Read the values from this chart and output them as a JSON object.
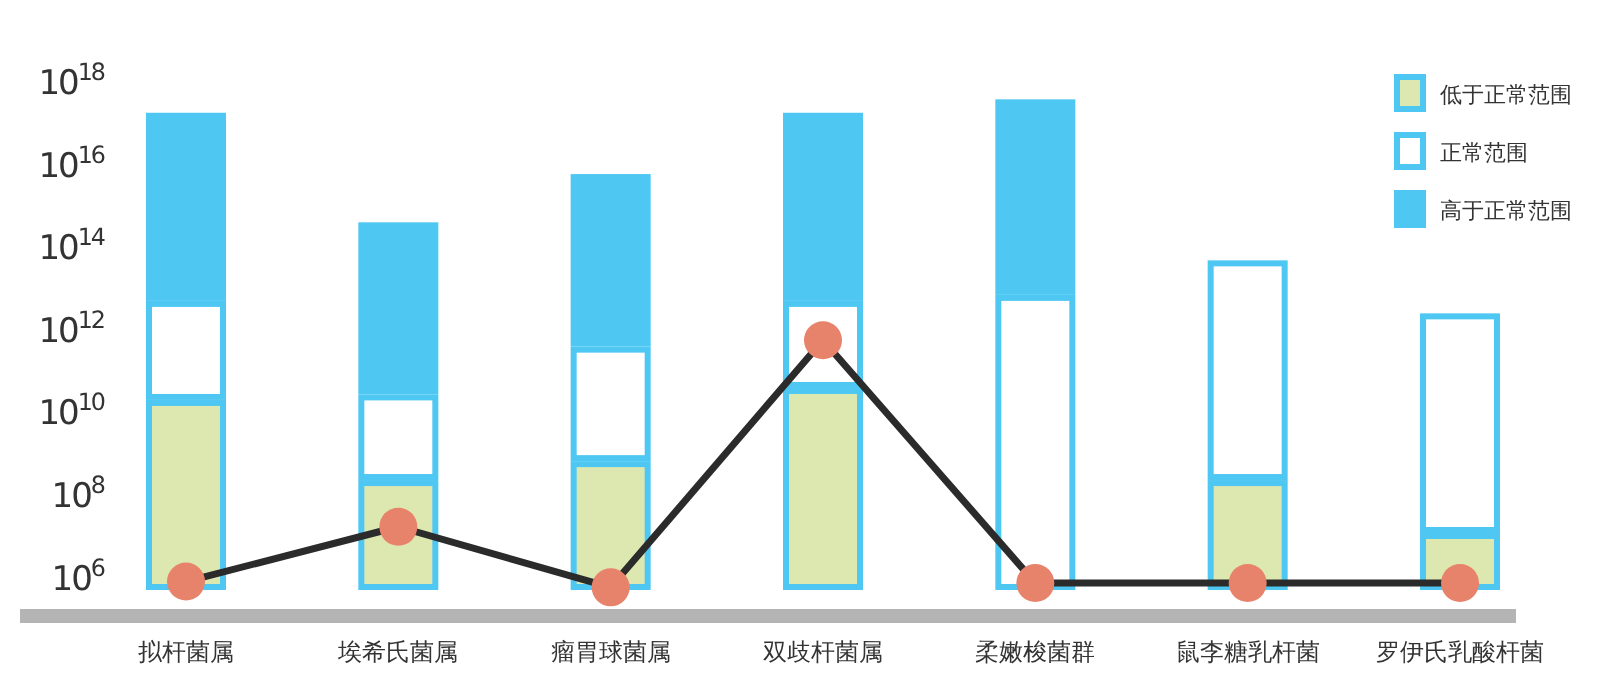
{
  "chart_data": {
    "type": "bar",
    "stacked": true,
    "log": "y",
    "legend": "top right",
    "categories": [
      "拟杆菌属",
      "埃希氏菌属",
      "瘤胃球菌属",
      "双歧杆菌属",
      "柔嫩梭菌群",
      "鼠李糖乳杆菌",
      "罗伊氏乳酸杆菌"
    ],
    "ylim": [
      500000,
      1e+18
    ],
    "yticks": [
      {
        "value": 1000000.0,
        "label": "10$^{6}$"
      },
      {
        "value": 100000000.0,
        "label": "10$^{8}$"
      },
      {
        "value": 10000000000.0,
        "label": "10$^{10}$"
      },
      {
        "value": 1000000000000.0,
        "label": "10$^{12}$"
      },
      {
        "value": 100000000000000.0,
        "label": "10$^{14}$"
      },
      {
        "value": 1e+16,
        "label": "10$^{16}$"
      },
      {
        "value": 1e+18,
        "label": "10$^{18}$"
      }
    ],
    "series": [
      {
        "name": "低于正常范围",
        "color": "#dde8b0",
        "values": [
          20000000000.0,
          230000000.0,
          660000000.0,
          39000000000.0,
          null,
          230000000.0,
          12000000.0
        ]
      },
      {
        "name": "正常范围",
        "color": "#ffffff",
        "values": [
          4980000000000.0,
          27000000000.0,
          390000000000.0,
          4960000000000.0,
          7000000000000.0,
          48000000000000.0,
          2500000000000.0
        ]
      },
      {
        "name": "高于正常范围",
        "color": "#4ec8f2",
        "values": [
          1.8e+17,
          400000000000000.0,
          5900000000000000.0,
          1.8e+17,
          3.8e+17,
          null,
          null
        ]
      },
      {
        "type": "line",
        "color": "#2b2b2b",
        "marker": "circle",
        "line_style": "solid",
        "values": [
          800000.0,
          17000000.0,
          580000.0,
          560000000000.0,
          740000.0,
          740000.0,
          740000.0
        ]
      }
    ]
  }
}
